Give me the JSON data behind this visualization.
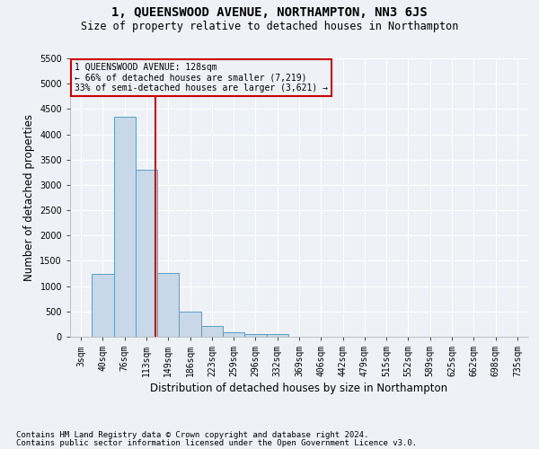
{
  "title": "1, QUEENSWOOD AVENUE, NORTHAMPTON, NN3 6JS",
  "subtitle": "Size of property relative to detached houses in Northampton",
  "xlabel": "Distribution of detached houses by size in Northampton",
  "ylabel": "Number of detached properties",
  "footer_line1": "Contains HM Land Registry data © Crown copyright and database right 2024.",
  "footer_line2": "Contains public sector information licensed under the Open Government Licence v3.0.",
  "categories": [
    "3sqm",
    "40sqm",
    "76sqm",
    "113sqm",
    "149sqm",
    "186sqm",
    "223sqm",
    "259sqm",
    "296sqm",
    "332sqm",
    "369sqm",
    "406sqm",
    "442sqm",
    "479sqm",
    "515sqm",
    "552sqm",
    "589sqm",
    "625sqm",
    "662sqm",
    "698sqm",
    "735sqm"
  ],
  "values": [
    0,
    1250,
    4350,
    3300,
    1260,
    490,
    210,
    90,
    60,
    50,
    0,
    0,
    0,
    0,
    0,
    0,
    0,
    0,
    0,
    0,
    0
  ],
  "bar_color": "#c8d8e8",
  "bar_edge_color": "#5a9cc5",
  "bar_width": 1.0,
  "ylim": [
    0,
    5500
  ],
  "yticks": [
    0,
    500,
    1000,
    1500,
    2000,
    2500,
    3000,
    3500,
    4000,
    4500,
    5000,
    5500
  ],
  "vline_x": 3.42,
  "vline_color": "#cc0000",
  "annotation_line1": "1 QUEENSWOOD AVENUE: 128sqm",
  "annotation_line2": "← 66% of detached houses are smaller (7,219)",
  "annotation_line3": "33% of semi-detached houses are larger (3,621) →",
  "annotation_box_color": "#cc0000",
  "bg_color": "#eef2f7",
  "grid_color": "#ffffff",
  "title_fontsize": 10,
  "subtitle_fontsize": 8.5,
  "label_fontsize": 8.5,
  "tick_fontsize": 7,
  "footer_fontsize": 6.5
}
